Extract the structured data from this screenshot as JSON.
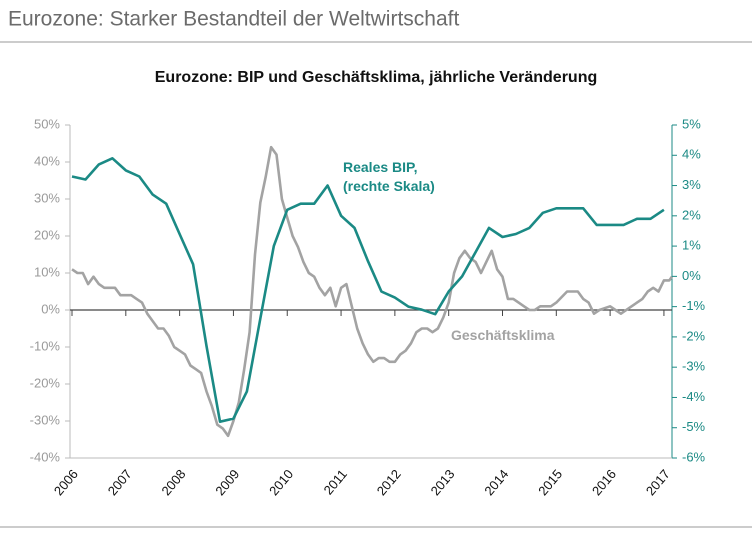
{
  "header": {
    "title": "Eurozone: Starker Bestandteil der Weltwirtschaft"
  },
  "chart_data": {
    "type": "line",
    "title": "Eurozone: BIP und Geschäftsklima, jährliche Veränderung",
    "xlim": [
      2006,
      2017.15
    ],
    "xticks": [
      2006,
      2007,
      2008,
      2009,
      2010,
      2011,
      2012,
      2013,
      2014,
      2015,
      2016,
      2017
    ],
    "ylim": [
      -40,
      50
    ],
    "yticks": [
      {
        "value": -40,
        "label": "-40%"
      },
      {
        "value": -30,
        "label": "-30%"
      },
      {
        "value": -20,
        "label": "-20%"
      },
      {
        "value": -10,
        "label": "-10%"
      },
      {
        "value": 0,
        "label": "0%"
      },
      {
        "value": 10,
        "label": "10%"
      },
      {
        "value": 20,
        "label": "20%"
      },
      {
        "value": 30,
        "label": "30%"
      },
      {
        "value": 40,
        "label": "40%"
      },
      {
        "value": 50,
        "label": "50%"
      }
    ],
    "y2lim": [
      -6,
      5
    ],
    "y2ticks": [
      {
        "value": -6,
        "label": "-6%"
      },
      {
        "value": -5,
        "label": "-5%"
      },
      {
        "value": -4,
        "label": "-4%"
      },
      {
        "value": -3,
        "label": "-3%"
      },
      {
        "value": -2,
        "label": "-2%"
      },
      {
        "value": -1,
        "label": "-1%"
      },
      {
        "value": 0,
        "label": "0%"
      },
      {
        "value": 1,
        "label": "1%"
      },
      {
        "value": 2,
        "label": "2%"
      },
      {
        "value": 3,
        "label": "3%"
      },
      {
        "value": 4,
        "label": "4%"
      },
      {
        "value": 5,
        "label": "5%"
      }
    ],
    "series": [
      {
        "name": "Geschäftsklima",
        "color": "#a3a3a3",
        "axis": "y",
        "x": [
          2006.0,
          2006.1,
          2006.2,
          2006.3,
          2006.4,
          2006.5,
          2006.6,
          2006.8,
          2006.9,
          2007.0,
          2007.1,
          2007.2,
          2007.3,
          2007.4,
          2007.5,
          2007.6,
          2007.7,
          2007.8,
          2007.9,
          2008.0,
          2008.1,
          2008.2,
          2008.3,
          2008.4,
          2008.5,
          2008.6,
          2008.7,
          2008.8,
          2008.9,
          2009.0,
          2009.1,
          2009.2,
          2009.3,
          2009.4,
          2009.5,
          2009.6,
          2009.7,
          2009.8,
          2009.9,
          2010.0,
          2010.1,
          2010.2,
          2010.3,
          2010.4,
          2010.5,
          2010.6,
          2010.7,
          2010.8,
          2010.9,
          2011.0,
          2011.1,
          2011.2,
          2011.3,
          2011.4,
          2011.5,
          2011.6,
          2011.7,
          2011.8,
          2011.9,
          2012.0,
          2012.1,
          2012.2,
          2012.3,
          2012.4,
          2012.5,
          2012.6,
          2012.7,
          2012.8,
          2012.9,
          2013.0,
          2013.1,
          2013.2,
          2013.3,
          2013.4,
          2013.5,
          2013.6,
          2013.7,
          2013.8,
          2013.9,
          2014.0,
          2014.1,
          2014.2,
          2014.3,
          2014.4,
          2014.5,
          2014.6,
          2014.7,
          2014.8,
          2014.9,
          2015.0,
          2015.2,
          2015.4,
          2015.5,
          2015.6,
          2015.7,
          2015.8,
          2016.0,
          2016.1,
          2016.2,
          2016.4,
          2016.5,
          2016.6,
          2016.7,
          2016.8,
          2016.9,
          2017.0,
          2017.1,
          2017.15
        ],
        "values": [
          11,
          10,
          10,
          7,
          9,
          7,
          6,
          6,
          4,
          4,
          4,
          3,
          2,
          -1,
          -3,
          -5,
          -5,
          -7,
          -10,
          -11,
          -12,
          -15,
          -16,
          -17,
          -22,
          -26,
          -31,
          -32,
          -34,
          -30,
          -25,
          -16,
          -6,
          15,
          29,
          36,
          44,
          42,
          30,
          25,
          20,
          17,
          13,
          10,
          9,
          6,
          4,
          6,
          1,
          6,
          7,
          1,
          -5,
          -9,
          -12,
          -14,
          -13,
          -13,
          -14,
          -14,
          -12,
          -11,
          -9,
          -6,
          -5,
          -5,
          -6,
          -5,
          -2,
          2,
          10,
          14,
          16,
          14,
          13,
          10,
          13,
          16,
          11,
          9,
          3,
          3,
          2,
          1,
          0,
          0,
          1,
          1,
          1,
          2,
          5,
          5,
          3,
          2,
          -1,
          0,
          1,
          0,
          -1,
          1,
          2,
          3,
          5,
          6,
          5,
          8,
          8,
          9
        ]
      },
      {
        "name": "Reales BIP, (rechte Skala)",
        "color": "#1b8a85",
        "axis": "y2",
        "x": [
          2006.0,
          2006.25,
          2006.5,
          2006.75,
          2007.0,
          2007.25,
          2007.5,
          2007.75,
          2008.0,
          2008.25,
          2008.5,
          2008.75,
          2009.0,
          2009.25,
          2009.5,
          2009.75,
          2010.0,
          2010.25,
          2010.5,
          2010.75,
          2011.0,
          2011.25,
          2011.5,
          2011.75,
          2012.0,
          2012.25,
          2012.5,
          2012.75,
          2013.0,
          2013.25,
          2013.5,
          2013.75,
          2014.0,
          2014.25,
          2014.5,
          2014.75,
          2015.0,
          2015.25,
          2015.5,
          2015.75,
          2016.0,
          2016.25,
          2016.5,
          2016.75,
          2017.0
        ],
        "values": [
          3.3,
          3.2,
          3.7,
          3.9,
          3.5,
          3.3,
          2.7,
          2.4,
          1.4,
          0.4,
          -2.3,
          -4.8,
          -4.7,
          -3.8,
          -1.4,
          1.0,
          2.2,
          2.4,
          2.4,
          3.0,
          2.0,
          1.6,
          0.5,
          -0.5,
          -0.7,
          -1.0,
          -1.1,
          -1.25,
          -0.5,
          0.0,
          0.8,
          1.6,
          1.3,
          1.4,
          1.6,
          2.1,
          2.25,
          2.25,
          2.25,
          1.7,
          1.7,
          1.7,
          1.9,
          1.9,
          2.2
        ]
      }
    ]
  }
}
